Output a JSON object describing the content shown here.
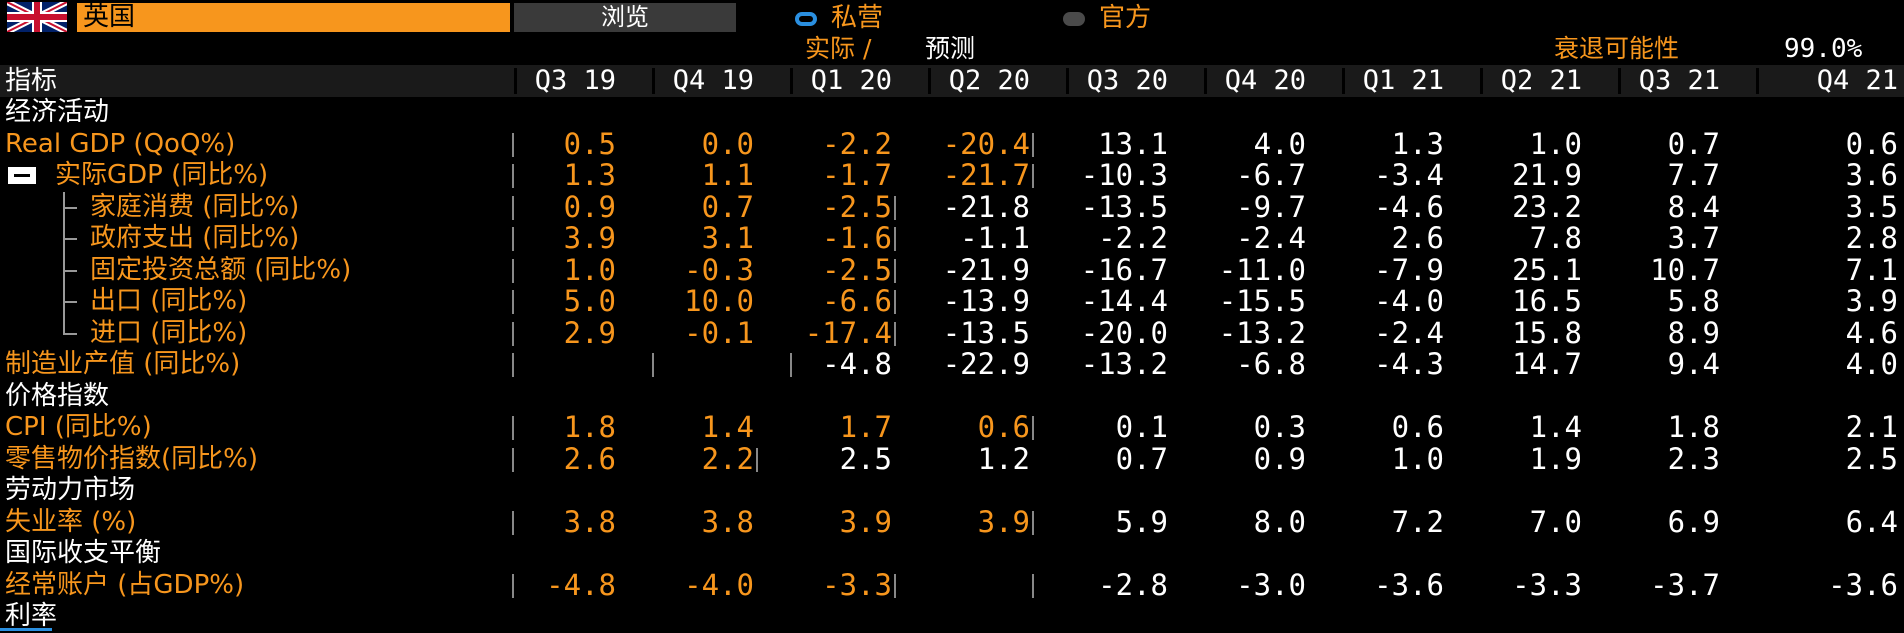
{
  "header": {
    "country": "英国",
    "browse_label": "浏览",
    "radio_private": "私营",
    "radio_official": "官方",
    "actual_forecast": "实际 /",
    "forecast": "预测",
    "recession_label": "衰退可能性",
    "recession_value": "99.0%"
  },
  "table": {
    "indicator_header": "指标",
    "columns": [
      "Q3 19",
      "Q4 19",
      "Q1 20",
      "Q2 20",
      "Q3 20",
      "Q4 20",
      "Q1 21",
      "Q2 21",
      "Q3 21",
      "Q4 21"
    ],
    "rows": [
      {
        "label": "经济活动",
        "type": "section",
        "values": []
      },
      {
        "label": "Real GDP (QoQ%)",
        "type": "data",
        "values": [
          "0.5",
          "0.0",
          "-2.2",
          "-20.4",
          "13.1",
          "4.0",
          "1.3",
          "1.0",
          "0.7",
          "0.6"
        ],
        "actual": 4
      },
      {
        "label": "实际GDP (同比%)",
        "type": "parent",
        "values": [
          "1.3",
          "1.1",
          "-1.7",
          "-21.7",
          "-10.3",
          "-6.7",
          "-3.4",
          "21.9",
          "7.7",
          "3.6"
        ],
        "actual": 4
      },
      {
        "label": "家庭消费 (同比%)",
        "type": "child",
        "values": [
          "0.9",
          "0.7",
          "-2.5",
          "-21.8",
          "-13.5",
          "-9.7",
          "-4.6",
          "23.2",
          "8.4",
          "3.5"
        ],
        "actual": 3
      },
      {
        "label": "政府支出 (同比%)",
        "type": "child",
        "values": [
          "3.9",
          "3.1",
          "-1.6",
          "-1.1",
          "-2.2",
          "-2.4",
          "2.6",
          "7.8",
          "3.7",
          "2.8"
        ],
        "actual": 3
      },
      {
        "label": "固定投资总额 (同比%)",
        "type": "child",
        "values": [
          "1.0",
          "-0.3",
          "-2.5",
          "-21.9",
          "-16.7",
          "-11.0",
          "-7.9",
          "25.1",
          "10.7",
          "7.1"
        ],
        "actual": 3
      },
      {
        "label": "出口 (同比%)",
        "type": "child",
        "values": [
          "5.0",
          "10.0",
          "-6.6",
          "-13.9",
          "-14.4",
          "-15.5",
          "-4.0",
          "16.5",
          "5.8",
          "3.9"
        ],
        "actual": 3
      },
      {
        "label": "进口 (同比%)",
        "type": "child_last",
        "values": [
          "2.9",
          "-0.1",
          "-17.4",
          "-13.5",
          "-20.0",
          "-13.2",
          "-2.4",
          "15.8",
          "8.9",
          "4.6"
        ],
        "actual": 3
      },
      {
        "label": "制造业产值 (同比%)",
        "type": "data",
        "values": [
          "",
          "",
          "-4.8",
          "-22.9",
          "-13.2",
          "-6.8",
          "-4.3",
          "14.7",
          "9.4",
          "4.0"
        ],
        "actual": 0
      },
      {
        "label": "价格指数",
        "type": "section",
        "values": []
      },
      {
        "label": "CPI (同比%)",
        "type": "data",
        "values": [
          "1.8",
          "1.4",
          "1.7",
          "0.6",
          "0.1",
          "0.3",
          "0.6",
          "1.4",
          "1.8",
          "2.1"
        ],
        "actual": 4
      },
      {
        "label": "零售物价指数(同比%)",
        "type": "data",
        "values": [
          "2.6",
          "2.2",
          "2.5",
          "1.2",
          "0.7",
          "0.9",
          "1.0",
          "1.9",
          "2.3",
          "2.5"
        ],
        "actual": 2
      },
      {
        "label": "劳动力市场",
        "type": "section",
        "values": []
      },
      {
        "label": "失业率 (%)",
        "type": "data",
        "values": [
          "3.8",
          "3.8",
          "3.9",
          "3.9",
          "5.9",
          "8.0",
          "7.2",
          "7.0",
          "6.9",
          "6.4"
        ],
        "actual": 4
      },
      {
        "label": "国际收支平衡",
        "type": "section",
        "values": []
      },
      {
        "label": "经常账户 (占GDP%)",
        "type": "data",
        "values": [
          "-4.8",
          "-4.0",
          "-3.3",
          "",
          "-2.8",
          "-3.0",
          "-3.6",
          "-3.3",
          "-3.7",
          "-3.6"
        ],
        "actual": 3
      },
      {
        "label": "利率",
        "type": "section",
        "values": []
      }
    ]
  },
  "colors": {
    "orange": "#f7961d",
    "blue": "#2a8fe0",
    "background": "#000000"
  }
}
